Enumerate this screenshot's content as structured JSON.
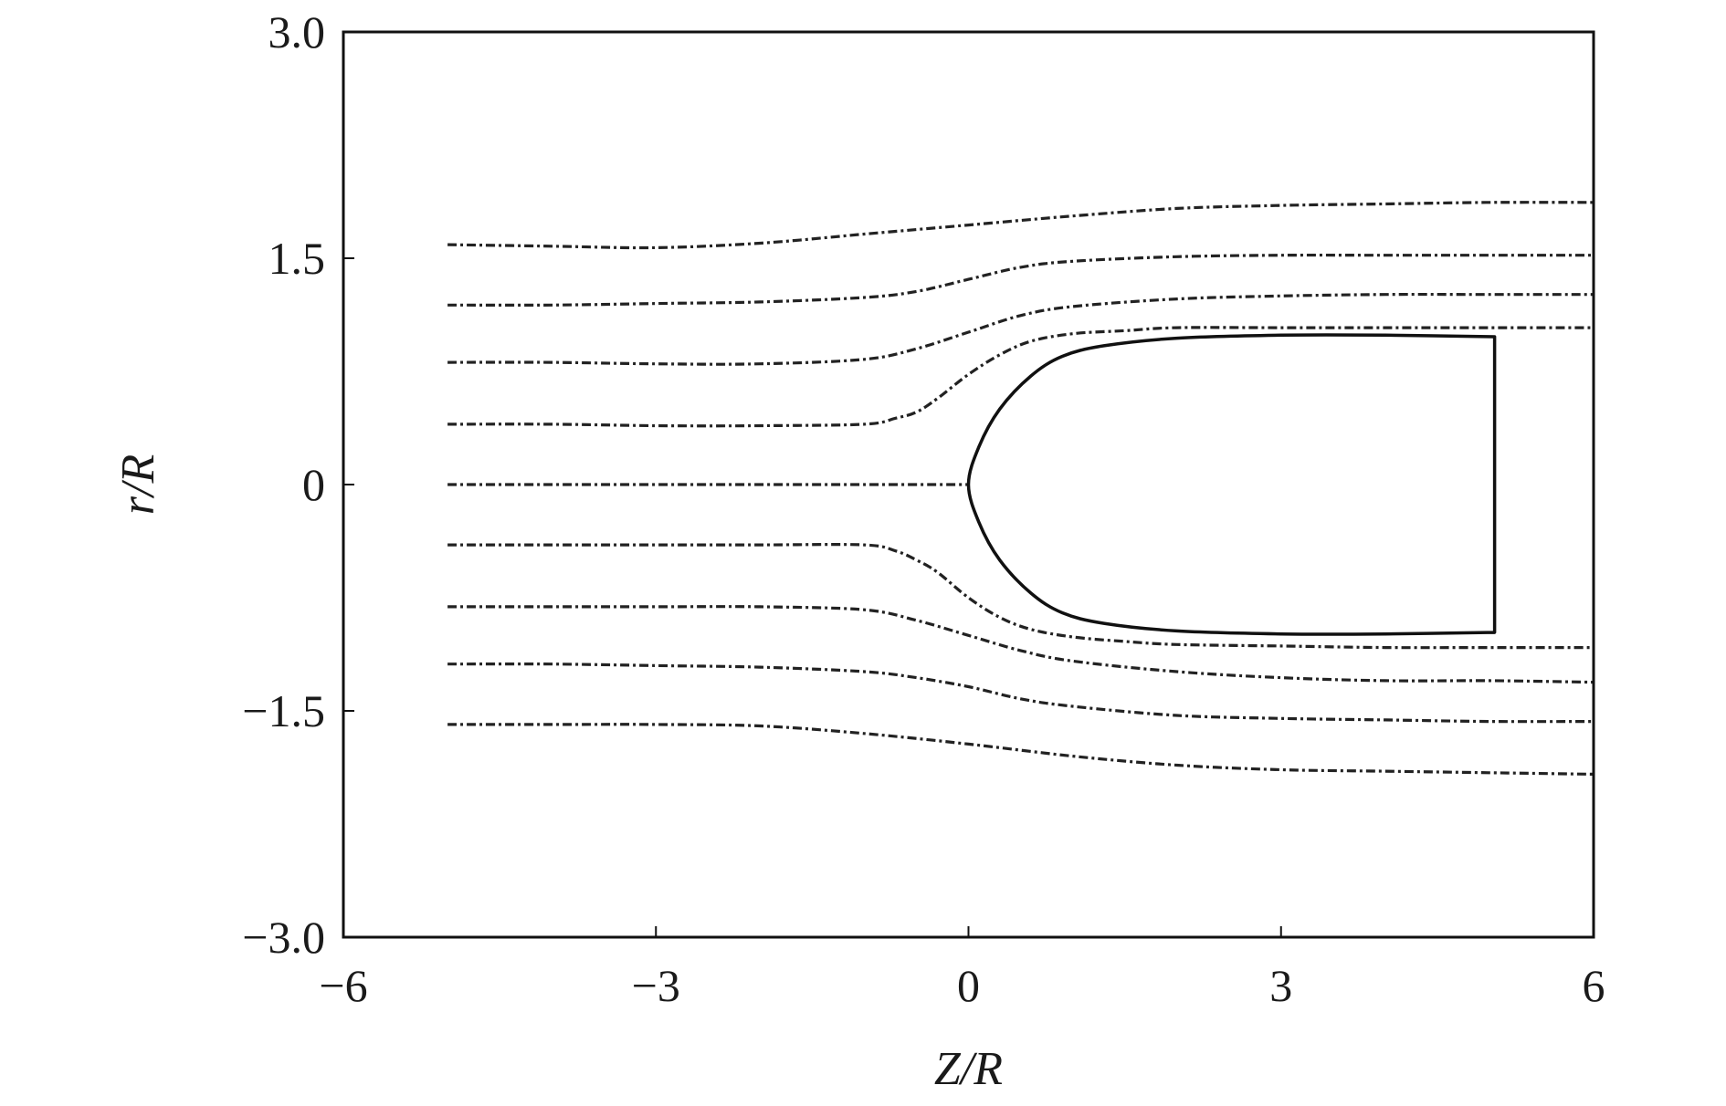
{
  "chart_data": {
    "type": "line",
    "title": "",
    "xlabel": "Z/R",
    "ylabel": "r/R",
    "xlim": [
      -6,
      6
    ],
    "ylim": [
      -3.0,
      3.0
    ],
    "xticks": [
      -6,
      -3,
      0,
      3,
      6
    ],
    "xtick_labels": [
      "−6",
      "−3",
      "0",
      "3",
      "6"
    ],
    "yticks": [
      3.0,
      1.5,
      0,
      -1.5,
      -3.0
    ],
    "ytick_labels": [
      "3.0",
      "1.5",
      "0",
      "−1.5",
      "−3.0"
    ],
    "grid": false,
    "legend": "none",
    "colors": {
      "streamline": "#222222",
      "body": "#111111",
      "axes": "#111111"
    },
    "body_outline": {
      "x": [
        5.05,
        5.05,
        4.0,
        3.0,
        2.0,
        1.3,
        0.9,
        0.6,
        0.3,
        0.1,
        0.0,
        0.1,
        0.3,
        0.6,
        0.9,
        1.3,
        2.0,
        3.0,
        4.0,
        5.05,
        5.05
      ],
      "y": [
        -0.98,
        0.98,
        0.99,
        0.99,
        0.97,
        0.92,
        0.85,
        0.72,
        0.5,
        0.25,
        0.0,
        -0.25,
        -0.5,
        -0.72,
        -0.85,
        -0.92,
        -0.97,
        -0.99,
        -0.99,
        -0.98,
        -0.98
      ]
    },
    "series": [
      {
        "x": [
          -5,
          -4,
          -3,
          -2,
          -1,
          0,
          1,
          2,
          3,
          4,
          5,
          6
        ],
        "y": [
          1.59,
          1.58,
          1.57,
          1.6,
          1.66,
          1.72,
          1.78,
          1.83,
          1.85,
          1.86,
          1.87,
          1.87
        ]
      },
      {
        "x": [
          -5,
          -4,
          -3,
          -2,
          -1,
          -0.5,
          0,
          0.5,
          1,
          2,
          3,
          4,
          5,
          6
        ],
        "y": [
          1.19,
          1.19,
          1.2,
          1.21,
          1.24,
          1.28,
          1.36,
          1.44,
          1.48,
          1.51,
          1.52,
          1.52,
          1.52,
          1.52
        ]
      },
      {
        "x": [
          -5,
          -4,
          -3,
          -2,
          -1,
          -0.5,
          0,
          0.5,
          1,
          2,
          3,
          4,
          5,
          6
        ],
        "y": [
          0.81,
          0.81,
          0.8,
          0.8,
          0.83,
          0.9,
          1.01,
          1.12,
          1.18,
          1.23,
          1.25,
          1.26,
          1.26,
          1.26
        ]
      },
      {
        "x": [
          -5,
          -4,
          -3,
          -2,
          -1,
          -0.7,
          -0.5,
          -0.3,
          0,
          0.3,
          0.6,
          1,
          1.5,
          2,
          3,
          4,
          5,
          6
        ],
        "y": [
          0.4,
          0.4,
          0.39,
          0.39,
          0.4,
          0.44,
          0.48,
          0.57,
          0.73,
          0.86,
          0.95,
          1.0,
          1.02,
          1.04,
          1.04,
          1.04,
          1.04,
          1.04
        ]
      },
      {
        "x": [
          -5,
          -4,
          -3,
          -2,
          -1,
          0
        ],
        "y": [
          0,
          0,
          0,
          0,
          0,
          0
        ]
      },
      {
        "x": [
          -5,
          -4,
          -3,
          -2,
          -1,
          -0.7,
          -0.5,
          -0.3,
          0,
          0.3,
          0.6,
          1,
          1.5,
          2,
          3,
          4,
          5,
          6
        ],
        "y": [
          -0.4,
          -0.4,
          -0.4,
          -0.4,
          -0.4,
          -0.44,
          -0.5,
          -0.58,
          -0.75,
          -0.88,
          -0.96,
          -1.01,
          -1.04,
          -1.06,
          -1.07,
          -1.08,
          -1.08,
          -1.08
        ]
      },
      {
        "x": [
          -5,
          -4,
          -3,
          -2,
          -1,
          -0.5,
          0,
          0.5,
          1,
          2,
          3,
          4,
          5,
          6
        ],
        "y": [
          -0.81,
          -0.81,
          -0.81,
          -0.81,
          -0.83,
          -0.9,
          -1.0,
          -1.1,
          -1.17,
          -1.24,
          -1.28,
          -1.3,
          -1.3,
          -1.31
        ]
      },
      {
        "x": [
          -5,
          -4,
          -3,
          -2,
          -1,
          -0.5,
          0,
          0.5,
          1,
          2,
          3,
          4,
          5,
          6
        ],
        "y": [
          -1.19,
          -1.19,
          -1.2,
          -1.21,
          -1.24,
          -1.28,
          -1.34,
          -1.42,
          -1.47,
          -1.53,
          -1.55,
          -1.56,
          -1.57,
          -1.57
        ]
      },
      {
        "x": [
          -5,
          -4,
          -3,
          -2,
          -1,
          0,
          1,
          2,
          3,
          4,
          5,
          6
        ],
        "y": [
          -1.59,
          -1.59,
          -1.59,
          -1.6,
          -1.65,
          -1.72,
          -1.8,
          -1.86,
          -1.89,
          -1.9,
          -1.91,
          -1.92
        ]
      }
    ]
  }
}
